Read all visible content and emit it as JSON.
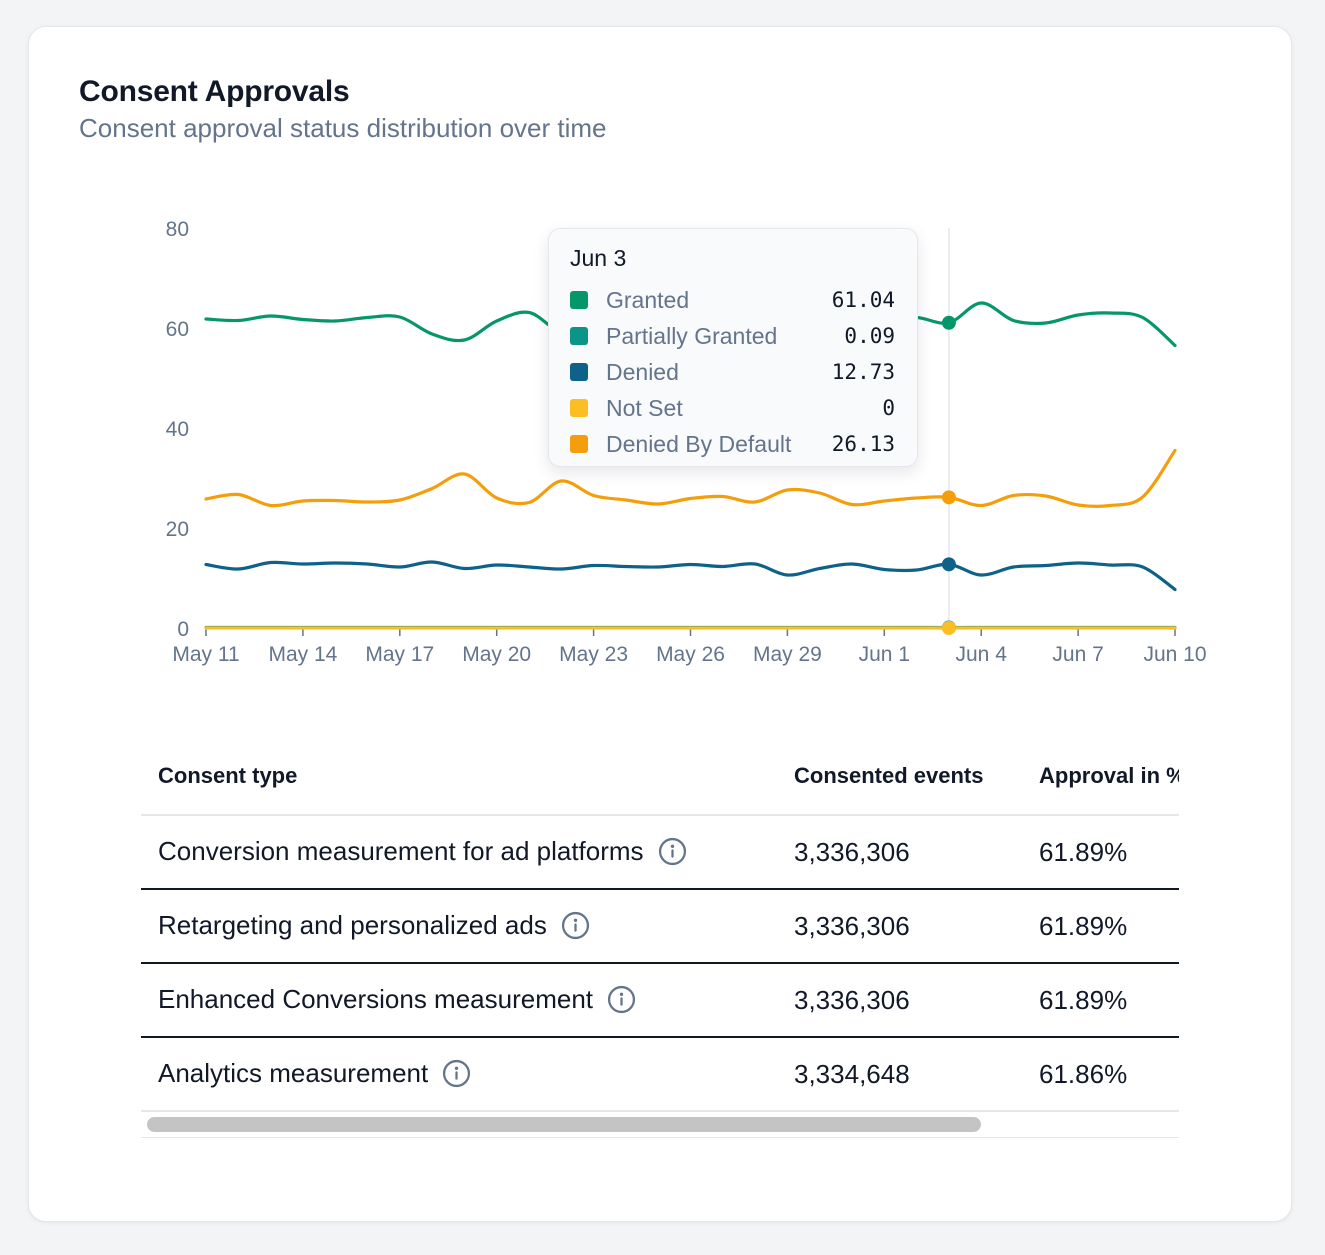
{
  "card": {
    "title": "Consent Approvals",
    "subtitle": "Consent approval status distribution over time"
  },
  "chart_data": {
    "type": "line",
    "x": [
      "May 11",
      "May 12",
      "May 13",
      "May 14",
      "May 15",
      "May 16",
      "May 17",
      "May 18",
      "May 19",
      "May 20",
      "May 21",
      "May 22",
      "May 23",
      "May 24",
      "May 25",
      "May 26",
      "May 27",
      "May 28",
      "May 29",
      "May 30",
      "May 31",
      "Jun 1",
      "Jun 2",
      "Jun 3",
      "Jun 4",
      "Jun 5",
      "Jun 6",
      "Jun 7",
      "Jun 8",
      "Jun 9",
      "Jun 10"
    ],
    "x_ticks": [
      "May 11",
      "May 14",
      "May 17",
      "May 20",
      "May 23",
      "May 26",
      "May 29",
      "Jun 1",
      "Jun 4",
      "Jun 7",
      "Jun 10"
    ],
    "ylim": [
      0,
      80
    ],
    "y_ticks": [
      0,
      20,
      40,
      60,
      80
    ],
    "series": [
      {
        "name": "Granted",
        "color": "#05976a",
        "values": [
          61.8,
          61.5,
          62.4,
          61.7,
          61.4,
          62.1,
          62.2,
          58.8,
          57.6,
          61.4,
          63.1,
          59.2,
          60.5,
          60.0,
          59.9,
          60.8,
          61.0,
          60.5,
          61.2,
          61.1,
          60.8,
          61.5,
          62.1,
          61.04,
          65.0,
          61.5,
          61.0,
          62.6,
          63.0,
          62.1,
          56.5
        ]
      },
      {
        "name": "Partially Granted",
        "color": "#0d9488",
        "values": [
          0.1,
          0.1,
          0.1,
          0.1,
          0.1,
          0.1,
          0.1,
          0.1,
          0.1,
          0.1,
          0.1,
          0.1,
          0.1,
          0.1,
          0.1,
          0.1,
          0.1,
          0.1,
          0.1,
          0.1,
          0.1,
          0.1,
          0.1,
          0.09,
          0.1,
          0.1,
          0.1,
          0.1,
          0.1,
          0.1,
          0.1
        ]
      },
      {
        "name": "Denied",
        "color": "#0e6188",
        "values": [
          12.7,
          11.8,
          13.1,
          12.8,
          13.0,
          12.8,
          12.2,
          13.2,
          11.9,
          12.6,
          12.2,
          11.8,
          12.5,
          12.3,
          12.2,
          12.7,
          12.3,
          12.8,
          10.6,
          11.9,
          12.8,
          11.7,
          11.6,
          12.73,
          10.6,
          12.2,
          12.5,
          13.0,
          12.6,
          12.2,
          7.7
        ]
      },
      {
        "name": "Not Set",
        "color": "#fbbf24",
        "values": [
          0,
          0,
          0,
          0,
          0,
          0,
          0,
          0,
          0,
          0,
          0,
          0,
          0,
          0,
          0,
          0,
          0,
          0,
          0,
          0,
          0,
          0,
          0,
          0,
          0,
          0,
          0,
          0,
          0,
          0,
          0
        ]
      },
      {
        "name": "Denied By Default",
        "color": "#f59e0b",
        "values": [
          25.8,
          26.7,
          24.5,
          25.4,
          25.5,
          25.2,
          25.6,
          27.9,
          30.8,
          26.0,
          25.1,
          29.4,
          26.5,
          25.6,
          24.8,
          25.9,
          26.3,
          25.2,
          27.6,
          27.0,
          24.7,
          25.4,
          26.0,
          26.13,
          24.5,
          26.5,
          26.4,
          24.6,
          24.5,
          26.2,
          35.5
        ]
      }
    ],
    "tooltip": {
      "date": "Jun 3",
      "rows": [
        {
          "label": "Granted",
          "value": "61.04",
          "color": "#05976a"
        },
        {
          "label": "Partially Granted",
          "value": "0.09",
          "color": "#0d9488"
        },
        {
          "label": "Denied",
          "value": "12.73",
          "color": "#0e6188"
        },
        {
          "label": "Not Set",
          "value": "0",
          "color": "#fbbf24"
        },
        {
          "label": "Denied By Default",
          "value": "26.13",
          "color": "#f59e0b"
        }
      ]
    },
    "hover_index": 23
  },
  "table": {
    "headers": [
      "Consent type",
      "Consented events",
      "Approval in %"
    ],
    "rows": [
      {
        "type": "Conversion measurement for ad platforms",
        "events": "3,336,306",
        "approval": "61.89%"
      },
      {
        "type": "Retargeting and personalized ads",
        "events": "3,336,306",
        "approval": "61.89%"
      },
      {
        "type": "Enhanced Conversions measurement",
        "events": "3,336,306",
        "approval": "61.89%"
      },
      {
        "type": "Analytics measurement",
        "events": "3,334,648",
        "approval": "61.86%"
      }
    ],
    "info_icon": "info-icon"
  }
}
